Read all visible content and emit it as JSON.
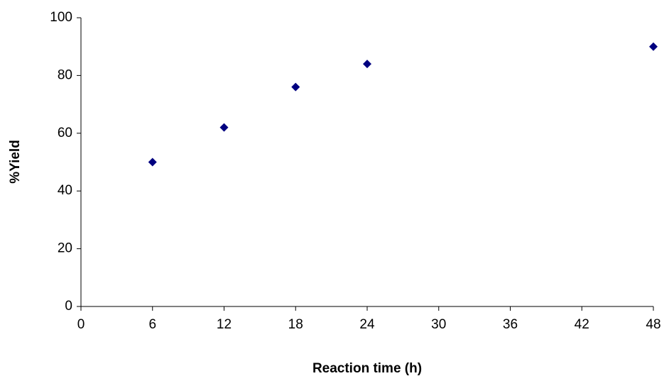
{
  "chart_data": {
    "type": "scatter",
    "x_label": "Reaction time (h)",
    "y_label": "%Yield",
    "x": [
      6,
      12,
      18,
      24,
      48
    ],
    "series": [
      {
        "color": "#000080",
        "values": [
          50,
          62,
          76,
          84,
          90
        ]
      }
    ],
    "xlim": [
      0,
      48
    ],
    "xticks": [
      0,
      6,
      12,
      18,
      24,
      30,
      36,
      42,
      48
    ],
    "ylim": [
      0,
      100
    ],
    "yticks": [
      0,
      20,
      40,
      60,
      80,
      100
    ],
    "grid": false,
    "marker": "diamond"
  }
}
